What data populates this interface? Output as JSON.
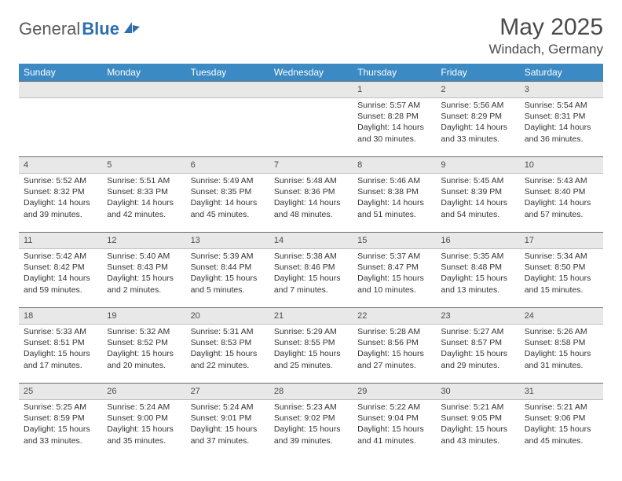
{
  "brand": {
    "part1": "General",
    "part2": "Blue"
  },
  "title": "May 2025",
  "location": "Windach, Germany",
  "colors": {
    "header_bg": "#3b8ac4",
    "header_text": "#ffffff",
    "date_band_bg": "#e8e8e8",
    "date_band_border_top": "#6b6b6b",
    "logo_accent": "#2f6fb0",
    "text_gray": "#4a4a4a"
  },
  "weekdays": [
    "Sunday",
    "Monday",
    "Tuesday",
    "Wednesday",
    "Thursday",
    "Friday",
    "Saturday"
  ],
  "weeks": [
    {
      "dates": [
        "",
        "",
        "",
        "",
        "1",
        "2",
        "3"
      ],
      "cells": [
        null,
        null,
        null,
        null,
        {
          "sunrise": "Sunrise: 5:57 AM",
          "sunset": "Sunset: 8:28 PM",
          "daylight": "Daylight: 14 hours and 30 minutes."
        },
        {
          "sunrise": "Sunrise: 5:56 AM",
          "sunset": "Sunset: 8:29 PM",
          "daylight": "Daylight: 14 hours and 33 minutes."
        },
        {
          "sunrise": "Sunrise: 5:54 AM",
          "sunset": "Sunset: 8:31 PM",
          "daylight": "Daylight: 14 hours and 36 minutes."
        }
      ]
    },
    {
      "dates": [
        "4",
        "5",
        "6",
        "7",
        "8",
        "9",
        "10"
      ],
      "cells": [
        {
          "sunrise": "Sunrise: 5:52 AM",
          "sunset": "Sunset: 8:32 PM",
          "daylight": "Daylight: 14 hours and 39 minutes."
        },
        {
          "sunrise": "Sunrise: 5:51 AM",
          "sunset": "Sunset: 8:33 PM",
          "daylight": "Daylight: 14 hours and 42 minutes."
        },
        {
          "sunrise": "Sunrise: 5:49 AM",
          "sunset": "Sunset: 8:35 PM",
          "daylight": "Daylight: 14 hours and 45 minutes."
        },
        {
          "sunrise": "Sunrise: 5:48 AM",
          "sunset": "Sunset: 8:36 PM",
          "daylight": "Daylight: 14 hours and 48 minutes."
        },
        {
          "sunrise": "Sunrise: 5:46 AM",
          "sunset": "Sunset: 8:38 PM",
          "daylight": "Daylight: 14 hours and 51 minutes."
        },
        {
          "sunrise": "Sunrise: 5:45 AM",
          "sunset": "Sunset: 8:39 PM",
          "daylight": "Daylight: 14 hours and 54 minutes."
        },
        {
          "sunrise": "Sunrise: 5:43 AM",
          "sunset": "Sunset: 8:40 PM",
          "daylight": "Daylight: 14 hours and 57 minutes."
        }
      ]
    },
    {
      "dates": [
        "11",
        "12",
        "13",
        "14",
        "15",
        "16",
        "17"
      ],
      "cells": [
        {
          "sunrise": "Sunrise: 5:42 AM",
          "sunset": "Sunset: 8:42 PM",
          "daylight": "Daylight: 14 hours and 59 minutes."
        },
        {
          "sunrise": "Sunrise: 5:40 AM",
          "sunset": "Sunset: 8:43 PM",
          "daylight": "Daylight: 15 hours and 2 minutes."
        },
        {
          "sunrise": "Sunrise: 5:39 AM",
          "sunset": "Sunset: 8:44 PM",
          "daylight": "Daylight: 15 hours and 5 minutes."
        },
        {
          "sunrise": "Sunrise: 5:38 AM",
          "sunset": "Sunset: 8:46 PM",
          "daylight": "Daylight: 15 hours and 7 minutes."
        },
        {
          "sunrise": "Sunrise: 5:37 AM",
          "sunset": "Sunset: 8:47 PM",
          "daylight": "Daylight: 15 hours and 10 minutes."
        },
        {
          "sunrise": "Sunrise: 5:35 AM",
          "sunset": "Sunset: 8:48 PM",
          "daylight": "Daylight: 15 hours and 13 minutes."
        },
        {
          "sunrise": "Sunrise: 5:34 AM",
          "sunset": "Sunset: 8:50 PM",
          "daylight": "Daylight: 15 hours and 15 minutes."
        }
      ]
    },
    {
      "dates": [
        "18",
        "19",
        "20",
        "21",
        "22",
        "23",
        "24"
      ],
      "cells": [
        {
          "sunrise": "Sunrise: 5:33 AM",
          "sunset": "Sunset: 8:51 PM",
          "daylight": "Daylight: 15 hours and 17 minutes."
        },
        {
          "sunrise": "Sunrise: 5:32 AM",
          "sunset": "Sunset: 8:52 PM",
          "daylight": "Daylight: 15 hours and 20 minutes."
        },
        {
          "sunrise": "Sunrise: 5:31 AM",
          "sunset": "Sunset: 8:53 PM",
          "daylight": "Daylight: 15 hours and 22 minutes."
        },
        {
          "sunrise": "Sunrise: 5:29 AM",
          "sunset": "Sunset: 8:55 PM",
          "daylight": "Daylight: 15 hours and 25 minutes."
        },
        {
          "sunrise": "Sunrise: 5:28 AM",
          "sunset": "Sunset: 8:56 PM",
          "daylight": "Daylight: 15 hours and 27 minutes."
        },
        {
          "sunrise": "Sunrise: 5:27 AM",
          "sunset": "Sunset: 8:57 PM",
          "daylight": "Daylight: 15 hours and 29 minutes."
        },
        {
          "sunrise": "Sunrise: 5:26 AM",
          "sunset": "Sunset: 8:58 PM",
          "daylight": "Daylight: 15 hours and 31 minutes."
        }
      ]
    },
    {
      "dates": [
        "25",
        "26",
        "27",
        "28",
        "29",
        "30",
        "31"
      ],
      "cells": [
        {
          "sunrise": "Sunrise: 5:25 AM",
          "sunset": "Sunset: 8:59 PM",
          "daylight": "Daylight: 15 hours and 33 minutes."
        },
        {
          "sunrise": "Sunrise: 5:24 AM",
          "sunset": "Sunset: 9:00 PM",
          "daylight": "Daylight: 15 hours and 35 minutes."
        },
        {
          "sunrise": "Sunrise: 5:24 AM",
          "sunset": "Sunset: 9:01 PM",
          "daylight": "Daylight: 15 hours and 37 minutes."
        },
        {
          "sunrise": "Sunrise: 5:23 AM",
          "sunset": "Sunset: 9:02 PM",
          "daylight": "Daylight: 15 hours and 39 minutes."
        },
        {
          "sunrise": "Sunrise: 5:22 AM",
          "sunset": "Sunset: 9:04 PM",
          "daylight": "Daylight: 15 hours and 41 minutes."
        },
        {
          "sunrise": "Sunrise: 5:21 AM",
          "sunset": "Sunset: 9:05 PM",
          "daylight": "Daylight: 15 hours and 43 minutes."
        },
        {
          "sunrise": "Sunrise: 5:21 AM",
          "sunset": "Sunset: 9:06 PM",
          "daylight": "Daylight: 15 hours and 45 minutes."
        }
      ]
    }
  ]
}
